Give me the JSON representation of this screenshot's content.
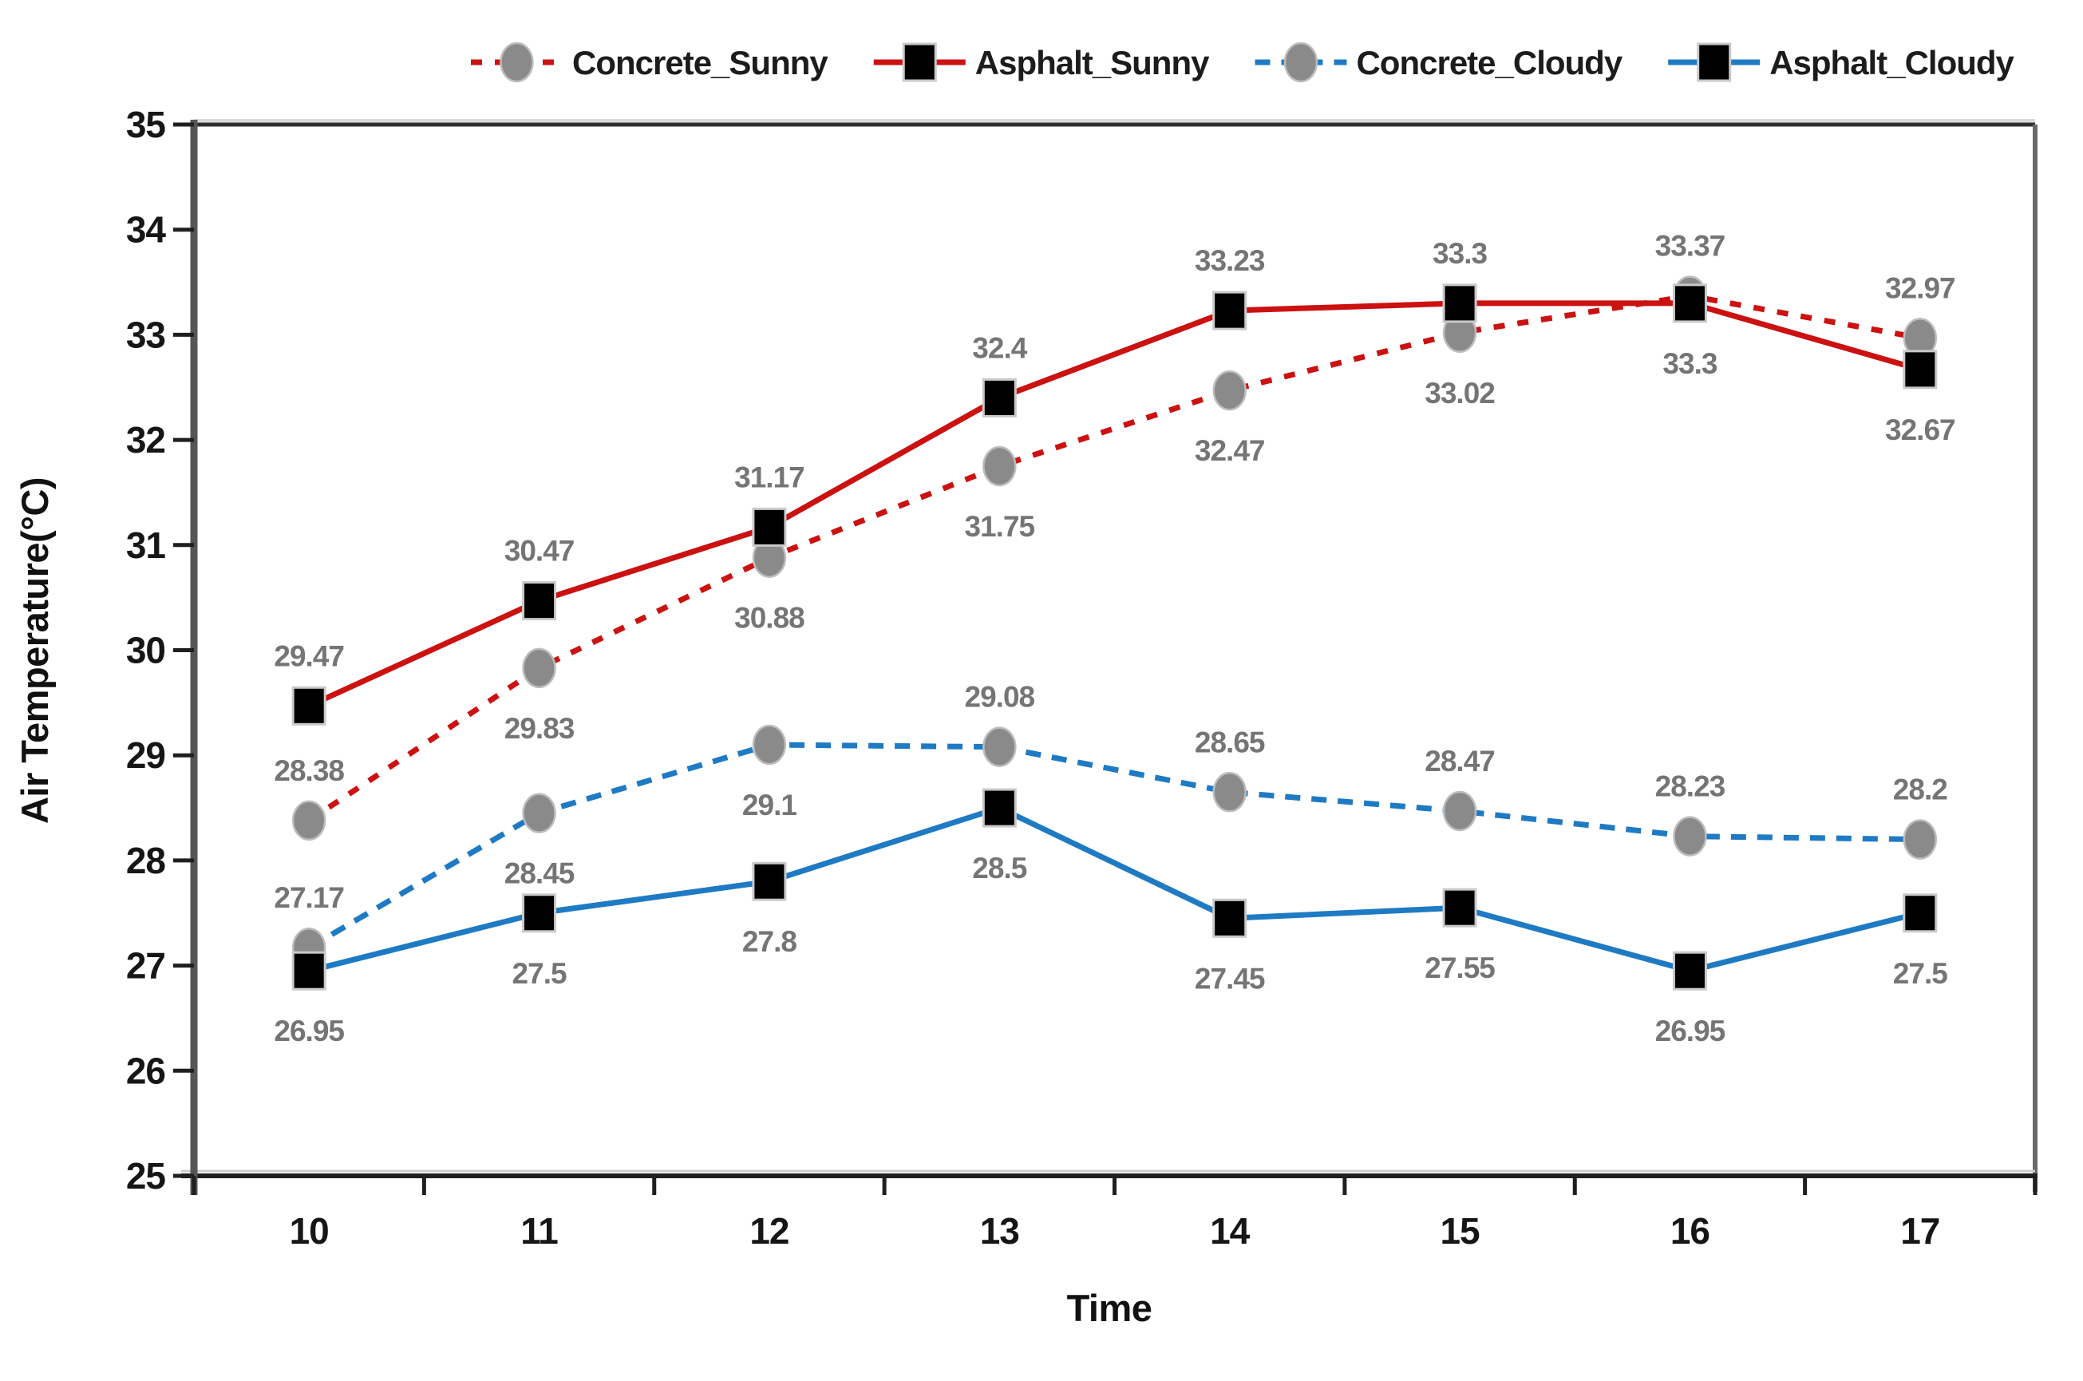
{
  "chart_data": {
    "type": "line",
    "title": "",
    "xlabel": "Time",
    "ylabel": "Air Temperature(°C)",
    "x": [
      10,
      11,
      12,
      13,
      14,
      15,
      16,
      17
    ],
    "ylim": [
      25,
      35
    ],
    "ytick_step": 1,
    "yticks": [
      25,
      26,
      27,
      28,
      29,
      30,
      31,
      32,
      33,
      34,
      35
    ],
    "grid": false,
    "legend_position": "top",
    "data_labels_shown": true,
    "series": [
      {
        "name": "Concrete_Sunny",
        "line_color": "#cc1111",
        "line_style": "dashed",
        "marker": "circle",
        "marker_color": "#8a8a8a",
        "values": [
          28.38,
          29.83,
          30.88,
          31.75,
          32.47,
          33.02,
          33.37,
          32.97
        ],
        "label_side": [
          "above",
          "below",
          "below",
          "below",
          "below",
          "below",
          "above",
          "above"
        ]
      },
      {
        "name": "Asphalt_Sunny",
        "line_color": "#cc1111",
        "line_style": "solid",
        "marker": "square",
        "marker_color": "#000000",
        "values": [
          29.47,
          30.47,
          31.17,
          32.4,
          33.23,
          33.3,
          33.3,
          32.67
        ],
        "label_side": [
          "above",
          "above",
          "above",
          "above",
          "above",
          "above",
          "below",
          "below"
        ]
      },
      {
        "name": "Concrete_Cloudy",
        "line_color": "#1f7ac4",
        "line_style": "dashed",
        "marker": "circle",
        "marker_color": "#8a8a8a",
        "values": [
          27.17,
          28.45,
          29.1,
          29.08,
          28.65,
          28.47,
          28.23,
          28.2
        ],
        "label_side": [
          "above",
          "below",
          "below",
          "above",
          "above",
          "above",
          "above",
          "above"
        ]
      },
      {
        "name": "Asphalt_Cloudy",
        "line_color": "#1f7ac4",
        "line_style": "solid",
        "marker": "square",
        "marker_color": "#000000",
        "values": [
          26.95,
          27.5,
          27.8,
          28.5,
          27.45,
          27.55,
          26.95,
          27.5
        ],
        "label_side": [
          "below",
          "below",
          "below",
          "below",
          "below",
          "below",
          "below",
          "below"
        ]
      }
    ],
    "colors": {
      "red_line": "#cc1111",
      "blue_line": "#1f7ac4",
      "circle_marker": "#8a8a8a",
      "square_marker": "#000000",
      "data_label": "#757575",
      "axis": "#1f1f1f",
      "border": "#6a6a6a"
    }
  }
}
